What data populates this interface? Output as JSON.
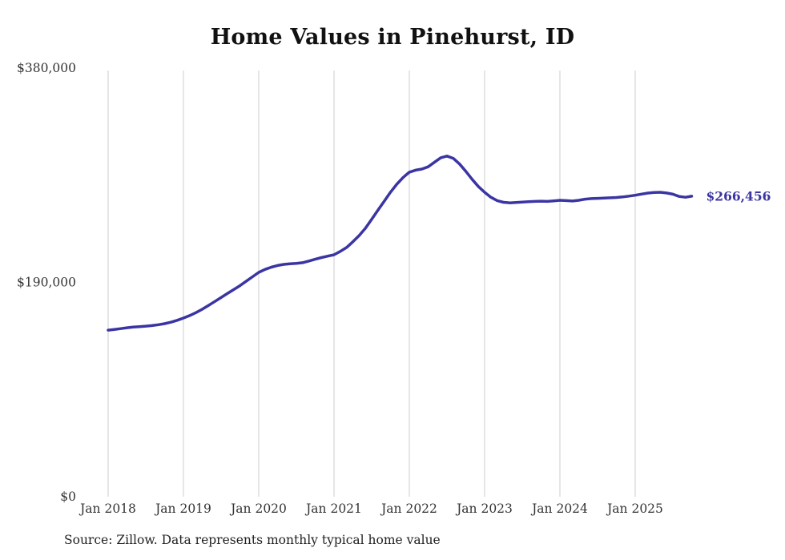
{
  "page": {
    "title": "Home Values in Pinehurst, ID",
    "source_note": "Source: Zillow. Data represents monthly typical home value"
  },
  "chart_data": {
    "type": "line",
    "title": "Home Values in Pinehurst, ID",
    "xlabel": "",
    "ylabel": "",
    "ylim": [
      0,
      380000
    ],
    "grid": "vertical-only",
    "legend_position": "none",
    "line_color": "#3b35a3",
    "gridline_color": "#cccccc",
    "end_label": "$266,456",
    "latest_value": 266456,
    "x_start": "2018-01",
    "x_end": "2025-10",
    "x_frequency": "monthly",
    "y_ticks": [
      {
        "label": "$380,000",
        "value": 380000
      },
      {
        "label": "$190,000",
        "value": 190000
      },
      {
        "label": "$0",
        "value": 0
      }
    ],
    "x_ticks": [
      {
        "label": "Jan 2018",
        "index": 0
      },
      {
        "label": "Jan 2019",
        "index": 12
      },
      {
        "label": "Jan 2020",
        "index": 24
      },
      {
        "label": "Jan 2021",
        "index": 36
      },
      {
        "label": "Jan 2022",
        "index": 48
      },
      {
        "label": "Jan 2023",
        "index": 60
      },
      {
        "label": "Jan 2024",
        "index": 72
      },
      {
        "label": "Jan 2025",
        "index": 84
      }
    ],
    "series": [
      {
        "name": "Typical home value",
        "values": [
          147700,
          148300,
          149000,
          149800,
          150400,
          150800,
          151200,
          151700,
          152500,
          153400,
          154700,
          156400,
          158400,
          160600,
          163200,
          166200,
          169600,
          173100,
          176600,
          180100,
          183600,
          187100,
          191000,
          195000,
          198900,
          201500,
          203500,
          205000,
          206000,
          206500,
          206800,
          207500,
          209000,
          210500,
          212000,
          213300,
          214500,
          217500,
          221000,
          226000,
          231500,
          238000,
          246000,
          254000,
          262000,
          270000,
          277000,
          283000,
          287700,
          289500,
          290500,
          292500,
          296500,
          300500,
          302000,
          300000,
          295000,
          288500,
          281500,
          275000,
          269900,
          265500,
          262500,
          261000,
          260500,
          260800,
          261200,
          261500,
          261800,
          262000,
          261800,
          262300,
          262800,
          262500,
          262200,
          262800,
          263800,
          264300,
          264500,
          264800,
          265000,
          265300,
          265800,
          266500,
          267300,
          268300,
          269200,
          269700,
          269900,
          269300,
          268200,
          266200,
          265500,
          266456
        ]
      }
    ]
  }
}
